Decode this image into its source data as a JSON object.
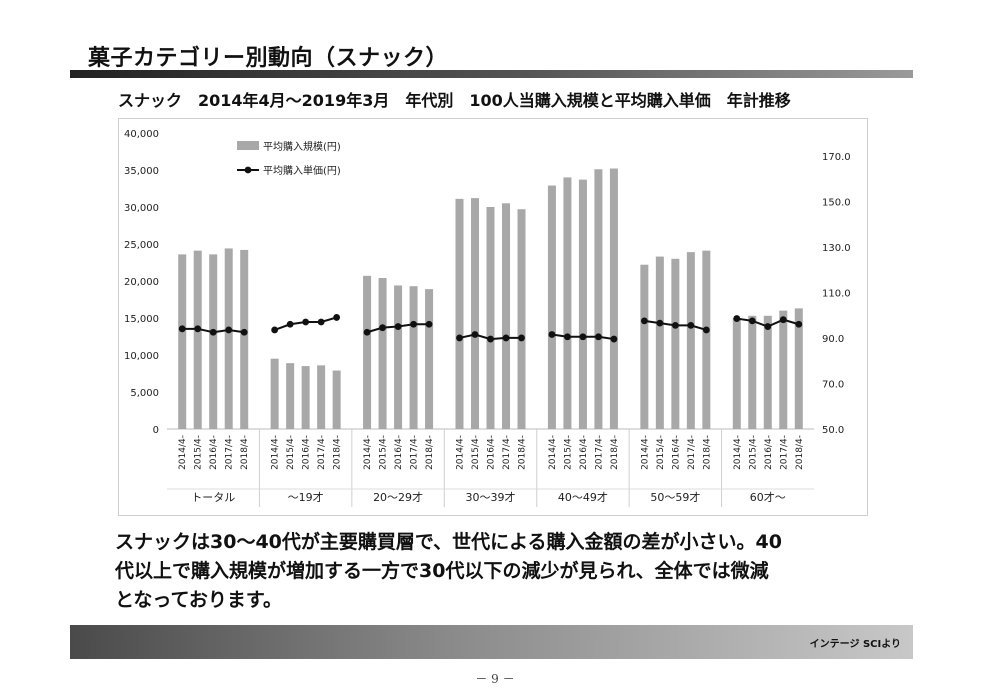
{
  "page": {
    "title": "菓子カテゴリー別動向（スナック）",
    "summary_lines": [
      "スナックは30～40代が主要購買層で、世代による購入金額の差が小さい。40",
      "代以上で購入規模が増加する一方で30代以下の減少が見られ、全体では微減",
      "となっております。"
    ],
    "source": "インテージ SCIより",
    "page_number": "－ 9 －"
  },
  "chart_data": {
    "type": "bar",
    "title": "スナック　2014年4月～2019年3月　年代別　100人当購入規模と平均購入単価　年計推移",
    "groups": [
      "トータル",
      "～19才",
      "20～29才",
      "30～39才",
      "40～49才",
      "50～59才",
      "60才～"
    ],
    "categories": [
      "2014/4-",
      "2015/4-",
      "2016/4-",
      "2017/4-",
      "2018/4-"
    ],
    "legend_position": "top-left",
    "y_left": {
      "ticks": [
        "0",
        "5,000",
        "10,000",
        "15,000",
        "20,000",
        "25,000",
        "30,000",
        "35,000",
        "40,000"
      ],
      "min": 0,
      "max": 40000
    },
    "y_right": {
      "ticks": [
        "50.0",
        "70.0",
        "90.0",
        "110.0",
        "130.0",
        "150.0",
        "170.0"
      ],
      "min": 50,
      "max": 180
    },
    "series": [
      {
        "name": "平均購入規模(円)",
        "type": "bar",
        "axis": "left",
        "color": "#a8a8a8",
        "values": [
          [
            23600,
            24100,
            23600,
            24400,
            24200
          ],
          [
            9500,
            8900,
            8500,
            8600,
            7900
          ],
          [
            20700,
            20400,
            19400,
            19300,
            18900
          ],
          [
            31100,
            31200,
            30000,
            30500,
            29700
          ],
          [
            32900,
            34000,
            33700,
            35100,
            35200
          ],
          [
            22200,
            23300,
            23000,
            23900,
            24100
          ],
          [
            15000,
            15300,
            15300,
            16000,
            16300
          ]
        ]
      },
      {
        "name": "平均購入単価(円)",
        "type": "line",
        "axis": "right",
        "color": "#111111",
        "values": [
          [
            94.0,
            94.0,
            92.5,
            93.5,
            92.5
          ],
          [
            93.5,
            96.0,
            97.0,
            97.0,
            99.0
          ],
          [
            92.5,
            94.5,
            95.0,
            96.0,
            96.0
          ],
          [
            90.0,
            91.5,
            89.5,
            90.0,
            90.0
          ],
          [
            91.5,
            90.5,
            90.5,
            90.5,
            89.5
          ],
          [
            97.5,
            96.5,
            95.5,
            95.5,
            93.5
          ],
          [
            98.5,
            97.5,
            95.0,
            98.0,
            96.0
          ]
        ]
      }
    ]
  }
}
